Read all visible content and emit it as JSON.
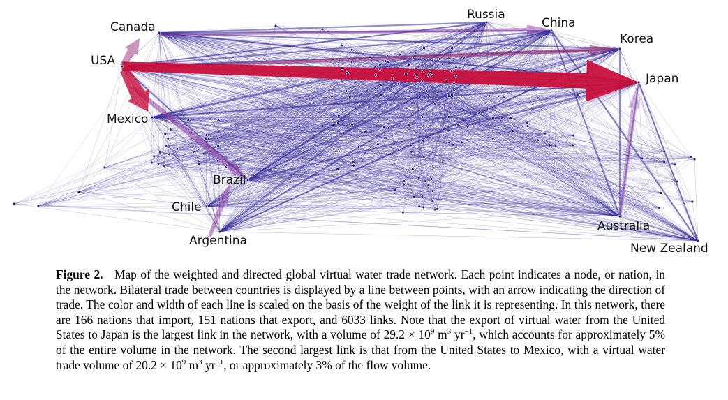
{
  "figure": {
    "countries": [
      {
        "id": "usa",
        "label": "USA"
      },
      {
        "id": "canada",
        "label": "Canada"
      },
      {
        "id": "mexico",
        "label": "Mexico"
      },
      {
        "id": "russia",
        "label": "Russia"
      },
      {
        "id": "china",
        "label": "China"
      },
      {
        "id": "korea",
        "label": "Korea"
      },
      {
        "id": "japan",
        "label": "Japan"
      },
      {
        "id": "brazil",
        "label": "Brazil"
      },
      {
        "id": "chile",
        "label": "Chile"
      },
      {
        "id": "argentina",
        "label": "Argentina"
      },
      {
        "id": "australia",
        "label": "Australia"
      },
      {
        "id": "newzealand",
        "label": "New Zealand"
      }
    ],
    "colors": {
      "link": "#3a2f9a",
      "strong_link": "#c8103c",
      "node": "#2a2270"
    }
  },
  "caption": {
    "label": "Figure 2.",
    "t1": "Map of the weighted and directed global virtual water trade network. Each point indicates a node, or nation, in the network. Bilateral trade between countries is displayed by a line between points, with an arrow indicating the direction of trade. The color and width of each line is scaled on the basis of the weight of the link it is representing. In this network, there are 166 nations that import, 151 nations that export, and 6033 links. Note that the export of virtual water from the United States to Japan is the largest link in the network, with a volume of 29.2 × 10",
    "e1": "9",
    "t2": " m",
    "e2": "3",
    "t3": " yr",
    "e3": "−1",
    "t4": ", which accounts for approximately 5% of the entire volume in the network. The second largest link is that from the United States to Mexico, with a virtual water trade volume of 20.2 × 10",
    "e4": "9",
    "t5": " m",
    "e5": "3",
    "t6": " yr",
    "e6": "−1",
    "t7": ", or approximately 3% of the flow volume."
  }
}
